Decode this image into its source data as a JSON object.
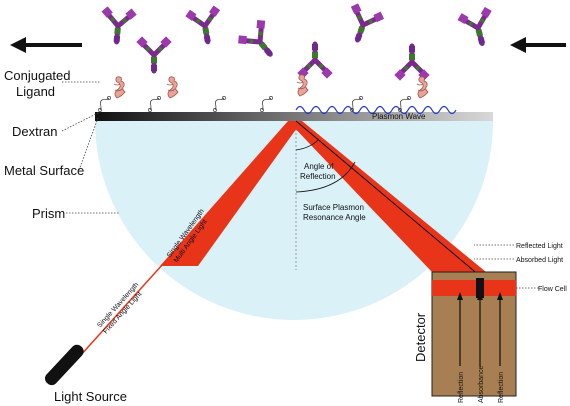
{
  "labels": {
    "conjugated_ligand_1": "Conjugated",
    "conjugated_ligand_2": "Ligand",
    "dextran": "Dextran",
    "metal_surface": "Metal Surface",
    "prism": "Prism",
    "light_source": "Light Source",
    "plasmon_wave": "Plasmon Wave",
    "angle_of_reflection_1": "Angle of",
    "angle_of_reflection_2": "Reflection",
    "spr_angle_1": "Surface Plasmon",
    "spr_angle_2": "Resonance Angle",
    "reflected_light": "Reflected Light",
    "absorbed_light": "Absorbed Light",
    "flow_cell": "Flow Cell",
    "detector": "Detector",
    "detector_reflection_left": "Reflection",
    "detector_absorbance": "Absorbance",
    "detector_reflection_right": "Reflection",
    "beam_fixed_1": "Single Wavelength",
    "beam_fixed_2": "Fixed Angle Light",
    "beam_multi_1": "Single Wavelength",
    "beam_multi_2": "Multi Angle Light"
  },
  "icons": {
    "flow_left": "arrow-left-icon",
    "flow_right": "arrow-left-icon",
    "antibody": "antibody-icon",
    "ligand": "protein-ligand-icon",
    "dextran": "dextran-chain-icon"
  },
  "colors": {
    "beam": "#e8351a",
    "prism": "#d9f1f7",
    "metal_left": "#1a1a1a",
    "metal_right": "#cfcfcf",
    "antibody_purple": "#8a2a9a",
    "antibody_green": "#3a7a2a",
    "detector_brown": "#a87f52",
    "plasmon_wave": "#2233cc"
  }
}
